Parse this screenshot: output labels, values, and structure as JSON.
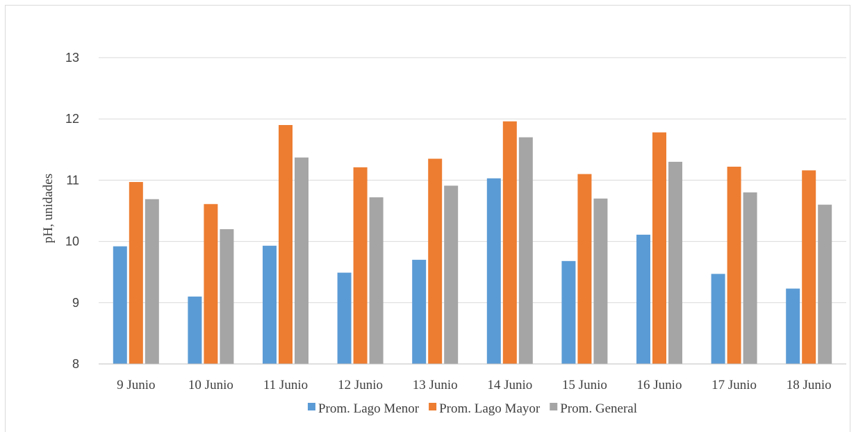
{
  "chart_data": {
    "type": "bar",
    "title": "",
    "xlabel": "",
    "ylabel": "pH, unidades",
    "ylim": [
      8,
      13
    ],
    "yticks": [
      8,
      9,
      10,
      11,
      12,
      13
    ],
    "categories": [
      "9 Junio",
      "10 Junio",
      "11 Junio",
      "12 Junio",
      "13 Junio",
      "14 Junio",
      "15 Junio",
      "16 Junio",
      "17 Junio",
      "18 Junio"
    ],
    "series": [
      {
        "name": "Prom. Lago Menor",
        "color": "#5b9bd5",
        "values": [
          9.92,
          9.1,
          9.93,
          9.49,
          9.7,
          11.03,
          9.68,
          10.11,
          9.47,
          9.23
        ]
      },
      {
        "name": "Prom. Lago Mayor",
        "color": "#ed7d31",
        "values": [
          10.97,
          10.61,
          11.9,
          11.21,
          11.35,
          11.96,
          11.1,
          11.78,
          11.22,
          11.16
        ]
      },
      {
        "name": "Prom. General",
        "color": "#a5a5a5",
        "values": [
          10.69,
          10.2,
          11.37,
          10.72,
          10.91,
          11.7,
          10.7,
          11.3,
          10.8,
          10.6
        ]
      }
    ],
    "grid": true,
    "legend_position": "bottom"
  }
}
